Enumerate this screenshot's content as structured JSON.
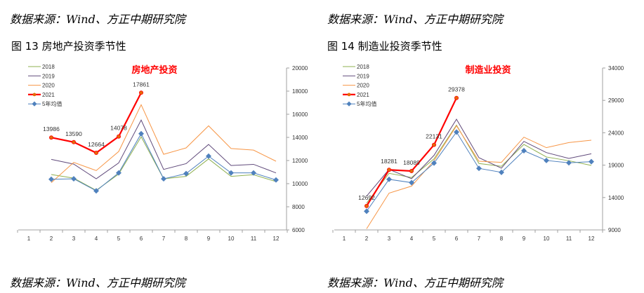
{
  "header": {
    "source_left": "数据来源：Wind、方正中期研究院",
    "source_right": "数据来源：Wind、方正中期研究院"
  },
  "footer": {
    "source_left": "数据来源：Wind、方正中期研究院",
    "source_right": "数据来源：Wind、方正中期研究院"
  },
  "figures": [
    {
      "label": "图  13    房地产投资季节性"
    },
    {
      "label": "图  14    制造业投资季节性"
    }
  ],
  "colors": {
    "2018": "#8fb050",
    "2019": "#604a7b",
    "2020": "#f79646",
    "2021": "#ff0000",
    "avg": "#4f81bd",
    "title": "#ff0000",
    "axis": "#a0a0a0"
  },
  "chart_data": [
    {
      "type": "line",
      "title": "房地产投资",
      "categories": [
        "1",
        "2",
        "3",
        "4",
        "5",
        "6",
        "7",
        "8",
        "9",
        "10",
        "11",
        "12"
      ],
      "ylim": [
        6000,
        20000
      ],
      "yticks": [
        "6000",
        "8000",
        "10000",
        "12000",
        "14000",
        "16000",
        "18000",
        "20000"
      ],
      "y_axis_side": "right",
      "legend": "top-left",
      "series": [
        {
          "name": "2018",
          "key": "2018",
          "values": [
            null,
            10790,
            10480,
            9420,
            10830,
            14050,
            10420,
            10630,
            12140,
            10630,
            10770,
            10180
          ]
        },
        {
          "name": "2019",
          "key": "2019",
          "values": [
            null,
            12100,
            11690,
            10420,
            11790,
            15500,
            11230,
            11730,
            13390,
            11570,
            11670,
            10930
          ]
        },
        {
          "name": "2020",
          "key": "2020",
          "values": [
            null,
            10080,
            11840,
            11130,
            12780,
            16820,
            12540,
            13090,
            15000,
            13040,
            12900,
            11940
          ]
        },
        {
          "name": "2021",
          "key": "2021",
          "values": [
            null,
            13986,
            13590,
            12664,
            14078,
            17861,
            null,
            null,
            null,
            null,
            null,
            null
          ],
          "labels": [
            "",
            "13986",
            "13590",
            "12664",
            "14078",
            "17861",
            "",
            "",
            "",
            "",
            "",
            ""
          ]
        },
        {
          "name": "5年均值",
          "key": "avg",
          "values": [
            null,
            10380,
            10420,
            9380,
            10930,
            14320,
            10420,
            10870,
            12380,
            10930,
            10930,
            10320
          ]
        }
      ]
    },
    {
      "type": "line",
      "title": "制造业投资",
      "categories": [
        "1",
        "2",
        "3",
        "4",
        "5",
        "6",
        "7",
        "8",
        "9",
        "10",
        "11",
        "12"
      ],
      "ylim": [
        9000,
        34000
      ],
      "yticks": [
        "9000",
        "14000",
        "19000",
        "24000",
        "29000",
        "34000"
      ],
      "y_axis_side": "right",
      "legend": "top-left",
      "series": [
        {
          "name": "2018",
          "key": "2018",
          "values": [
            null,
            13140,
            17740,
            17090,
            19970,
            25190,
            19250,
            18820,
            22200,
            20260,
            19680,
            18960
          ]
        },
        {
          "name": "2019",
          "key": "2019",
          "values": [
            null,
            14220,
            18350,
            16910,
            20510,
            26090,
            20150,
            18530,
            22670,
            20940,
            20040,
            20760
          ]
        },
        {
          "name": "2020",
          "key": "2020",
          "values": [
            null,
            9180,
            14680,
            15760,
            19680,
            25080,
            19610,
            19430,
            23320,
            21700,
            22490,
            22850
          ]
        },
        {
          "name": "2021",
          "key": "2021",
          "values": [
            null,
            12692,
            18281,
            18089,
            22131,
            29378,
            null,
            null,
            null,
            null,
            null,
            null
          ],
          "labels": [
            "",
            "12692",
            "18281",
            "18089",
            "22131",
            "29378",
            "",
            "",
            "",
            "",
            "",
            ""
          ]
        },
        {
          "name": "5年均值",
          "key": "avg",
          "values": [
            null,
            11880,
            16810,
            16300,
            19320,
            24110,
            18500,
            17890,
            21230,
            19720,
            19360,
            19540
          ]
        }
      ]
    }
  ]
}
